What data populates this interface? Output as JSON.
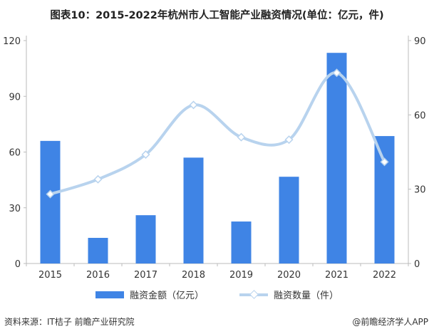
{
  "chart_data": {
    "type": "bar",
    "title": "图表10：2015-2022年杭州市人工智能产业融资情况(单位：亿元，件)",
    "categories": [
      "2015",
      "2016",
      "2017",
      "2018",
      "2019",
      "2020",
      "2021",
      "2022"
    ],
    "series": [
      {
        "name": "融资金额（亿元）",
        "type": "bar",
        "axis": "left",
        "values": [
          66,
          13.8,
          26,
          57,
          22.6,
          46.7,
          113.4,
          68.6
        ],
        "color": "#3f84e5"
      },
      {
        "name": "融资数量（件）",
        "type": "line",
        "axis": "right",
        "values": [
          28,
          34,
          44,
          64,
          51,
          50,
          77,
          41
        ],
        "color": "#b8d3ee"
      }
    ],
    "ylim_left": [
      0,
      120
    ],
    "yticks_left": [
      "0",
      "30",
      "60",
      "90",
      "120"
    ],
    "ylim_right": [
      0,
      90
    ],
    "yticks_right": [
      "0",
      "30",
      "60",
      "90"
    ],
    "legend": "bottom",
    "grid": false
  },
  "footer": {
    "source": "资料来源：IT桔子 前瞻产业研究院",
    "brand": "@前瞻经济学人APP"
  }
}
